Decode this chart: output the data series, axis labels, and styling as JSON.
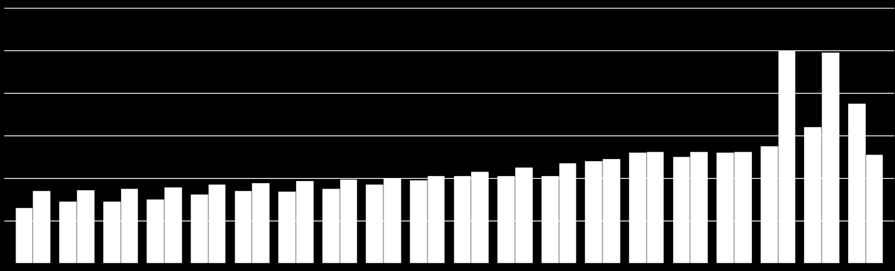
{
  "background_color": "#000000",
  "bar_color": "#ffffff",
  "grid_color": "#ffffff",
  "series1": [
    1.3,
    1.45,
    1.45,
    1.5,
    1.62,
    1.7,
    1.68,
    1.75,
    1.85,
    1.95,
    2.05,
    2.05,
    2.05,
    2.4,
    2.6,
    2.5,
    2.6,
    2.75,
    3.2,
    3.75
  ],
  "series2": [
    1.7,
    1.72,
    1.75,
    1.78,
    1.85,
    1.88,
    1.93,
    1.96,
    2.0,
    2.05,
    2.15,
    2.25,
    2.35,
    2.45,
    2.62,
    2.62,
    2.62,
    5.0,
    4.95,
    2.55
  ],
  "ylim": [
    0,
    6.0
  ],
  "bar_width": 0.4,
  "figsize": [
    12.58,
    3.82
  ],
  "dpi": 100,
  "gridlines_y": [
    1.0,
    2.0,
    3.0,
    4.0,
    5.0,
    6.0
  ]
}
